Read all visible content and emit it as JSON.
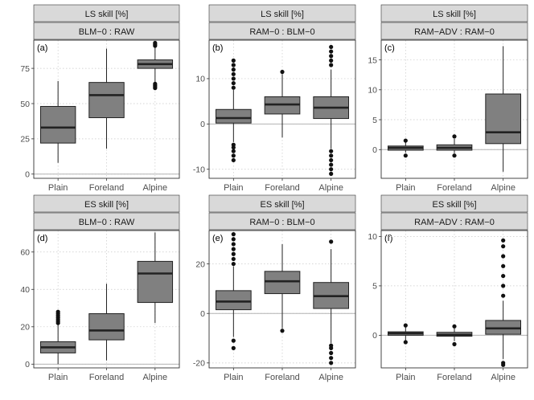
{
  "chart_data": [
    {
      "type": "boxplot",
      "label": "(a)",
      "strip_top": "LS skill [%]",
      "strip_bottom": "BLM−0 : RAW",
      "categories": [
        "Plain",
        "Foreland",
        "Alpine"
      ],
      "ylim": [
        -3,
        95
      ],
      "yticks": [
        0,
        25,
        50,
        75
      ],
      "hline": 0,
      "boxes": [
        {
          "wlo": 8,
          "q1": 22,
          "med": 33,
          "q3": 48,
          "whi": 66,
          "outliers": []
        },
        {
          "wlo": 18,
          "q1": 40,
          "med": 56,
          "q3": 65,
          "whi": 89,
          "outliers": []
        },
        {
          "wlo": 65,
          "q1": 75,
          "med": 78,
          "q3": 81,
          "whi": 90,
          "outliers": [
            61,
            62,
            63,
            64,
            91,
            92,
            93
          ]
        }
      ]
    },
    {
      "type": "boxplot",
      "label": "(b)",
      "strip_top": "LS skill [%]",
      "strip_bottom": "RAM−0 : BLM−0",
      "categories": [
        "Plain",
        "Foreland",
        "Alpine"
      ],
      "ylim": [
        -12,
        18.5
      ],
      "yticks": [
        -10,
        0,
        10
      ],
      "hline": 0,
      "boxes": [
        {
          "wlo": -4,
          "q1": 0.2,
          "med": 1.3,
          "q3": 3.2,
          "whi": 7.5,
          "outliers": [
            -8,
            -7,
            -6,
            -5.2,
            -4.6,
            8,
            9,
            10,
            11,
            12,
            13,
            14
          ]
        },
        {
          "wlo": -3,
          "q1": 2.2,
          "med": 4.3,
          "q3": 6,
          "whi": 11,
          "outliers": [
            11.5
          ]
        },
        {
          "wlo": -5.5,
          "q1": 1.2,
          "med": 3.6,
          "q3": 6,
          "whi": 12,
          "outliers": [
            -11,
            -10,
            -9,
            -8,
            -7,
            -6,
            13,
            14,
            15,
            16,
            17
          ]
        }
      ]
    },
    {
      "type": "boxplot",
      "label": "(c)",
      "strip_top": "LS skill [%]",
      "strip_bottom": "RAM−ADV : RAM−0",
      "categories": [
        "Plain",
        "Foreland",
        "Alpine"
      ],
      "ylim": [
        -4.8,
        18.3
      ],
      "yticks": [
        0,
        5,
        10,
        15
      ],
      "hline": 0,
      "boxes": [
        {
          "wlo": -0.5,
          "q1": -0.1,
          "med": 0.3,
          "q3": 0.6,
          "whi": 1.2,
          "outliers": [
            -1,
            1.5
          ]
        },
        {
          "wlo": -0.6,
          "q1": -0.1,
          "med": 0.3,
          "q3": 0.8,
          "whi": 1.8,
          "outliers": [
            -1,
            2.2
          ]
        },
        {
          "wlo": -3.7,
          "q1": 1,
          "med": 2.9,
          "q3": 9.3,
          "whi": 17.3,
          "outliers": []
        }
      ]
    },
    {
      "type": "boxplot",
      "label": "(d)",
      "strip_top": "ES skill [%]",
      "strip_bottom": "BLM−0 : RAW",
      "categories": [
        "Plain",
        "Foreland",
        "Alpine"
      ],
      "ylim": [
        -2,
        71.5
      ],
      "yticks": [
        0,
        20,
        40,
        60
      ],
      "hline": 0,
      "boxes": [
        {
          "wlo": 0,
          "q1": 6,
          "med": 9,
          "q3": 12,
          "whi": 21,
          "outliers": [
            22,
            23,
            24,
            25,
            26,
            27,
            28
          ]
        },
        {
          "wlo": 2,
          "q1": 13,
          "med": 18,
          "q3": 27,
          "whi": 43,
          "outliers": []
        },
        {
          "wlo": 22,
          "q1": 33,
          "med": 48.5,
          "q3": 55,
          "whi": 70.5,
          "outliers": []
        }
      ]
    },
    {
      "type": "boxplot",
      "label": "(e)",
      "strip_top": "ES skill [%]",
      "strip_bottom": "RAM−0 : BLM−0",
      "categories": [
        "Plain",
        "Foreland",
        "Alpine"
      ],
      "ylim": [
        -22,
        33.5
      ],
      "yticks": [
        -20,
        0,
        20
      ],
      "hline": 0,
      "boxes": [
        {
          "wlo": -9.5,
          "q1": 1.5,
          "med": 4.8,
          "q3": 9.2,
          "whi": 19,
          "outliers": [
            -14,
            -11,
            20,
            22,
            24,
            26,
            28,
            30,
            32
          ]
        },
        {
          "wlo": -6,
          "q1": 8,
          "med": 13,
          "q3": 17,
          "whi": 28,
          "outliers": [
            -7
          ]
        },
        {
          "wlo": -12,
          "q1": 2,
          "med": 7,
          "q3": 12.5,
          "whi": 26,
          "outliers": [
            -20,
            -18,
            -16,
            -14,
            -13,
            29
          ]
        }
      ]
    },
    {
      "type": "boxplot",
      "label": "(f)",
      "strip_top": "ES skill [%]",
      "strip_bottom": "RAM−ADV : RAM−0",
      "categories": [
        "Plain",
        "Foreland",
        "Alpine"
      ],
      "ylim": [
        -3.3,
        10.6
      ],
      "yticks": [
        0,
        5,
        10
      ],
      "hline": 0,
      "boxes": [
        {
          "wlo": -0.5,
          "q1": 0,
          "med": 0.2,
          "q3": 0.35,
          "whi": 0.8,
          "outliers": [
            -0.7,
            1
          ]
        },
        {
          "wlo": -0.6,
          "q1": -0.1,
          "med": 0.05,
          "q3": 0.3,
          "whi": 0.7,
          "outliers": [
            -0.9,
            0.9
          ]
        },
        {
          "wlo": -2.4,
          "q1": 0.1,
          "med": 0.7,
          "q3": 1.5,
          "whi": 3.5,
          "outliers": [
            -3,
            -2.8,
            4,
            5,
            6,
            7,
            8,
            9,
            9.6
          ]
        }
      ]
    }
  ]
}
